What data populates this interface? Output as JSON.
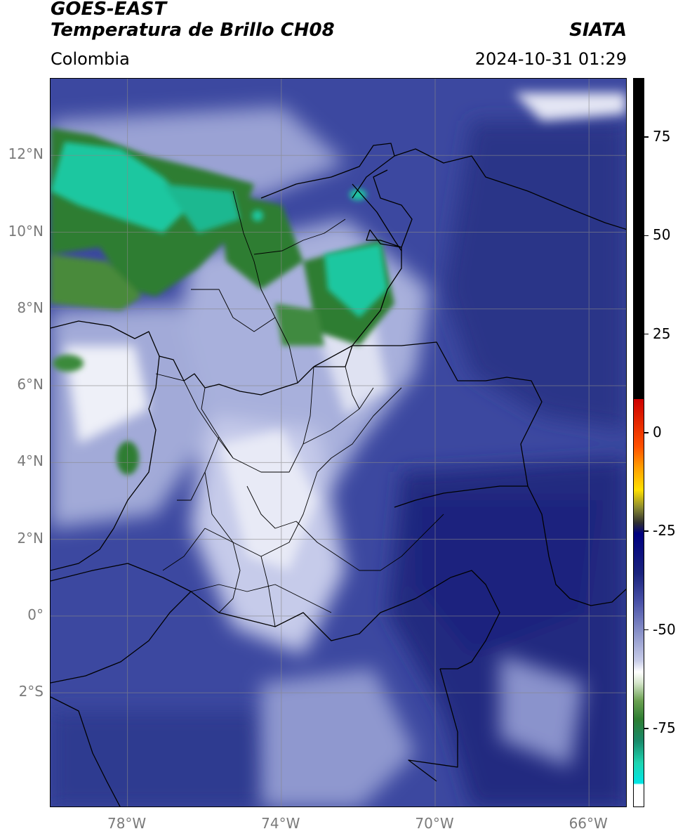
{
  "header": {
    "satellite": "GOES-EAST",
    "product": "Temperatura de Brillo CH08",
    "organization": "SIATA",
    "region": "Colombia",
    "timestamp": "2024-10-31 01:29"
  },
  "map": {
    "lon_range": [
      -80,
      -65
    ],
    "lat_range": [
      -5,
      14
    ],
    "lat_ticks": [
      {
        "value": 12,
        "label": "12°N"
      },
      {
        "value": 10,
        "label": "10°N"
      },
      {
        "value": 8,
        "label": "8°N"
      },
      {
        "value": 6,
        "label": "6°N"
      },
      {
        "value": 4,
        "label": "4°N"
      },
      {
        "value": 2,
        "label": "2°N"
      },
      {
        "value": 0,
        "label": "0°"
      },
      {
        "value": -2,
        "label": "2°S"
      }
    ],
    "lon_ticks": [
      {
        "value": -78,
        "label": "78°W"
      },
      {
        "value": -74,
        "label": "74°W"
      },
      {
        "value": -70,
        "label": "70°W"
      },
      {
        "value": -66,
        "label": "66°W"
      }
    ],
    "grid": true
  },
  "colorbar": {
    "range": [
      -95,
      90
    ],
    "ticks": [
      {
        "value": 75,
        "label": "75"
      },
      {
        "value": 50,
        "label": "50"
      },
      {
        "value": 25,
        "label": "25"
      },
      {
        "value": 0,
        "label": "0"
      },
      {
        "value": -25,
        "label": "-25"
      },
      {
        "value": -50,
        "label": "-50"
      },
      {
        "value": -75,
        "label": "-75"
      }
    ]
  }
}
